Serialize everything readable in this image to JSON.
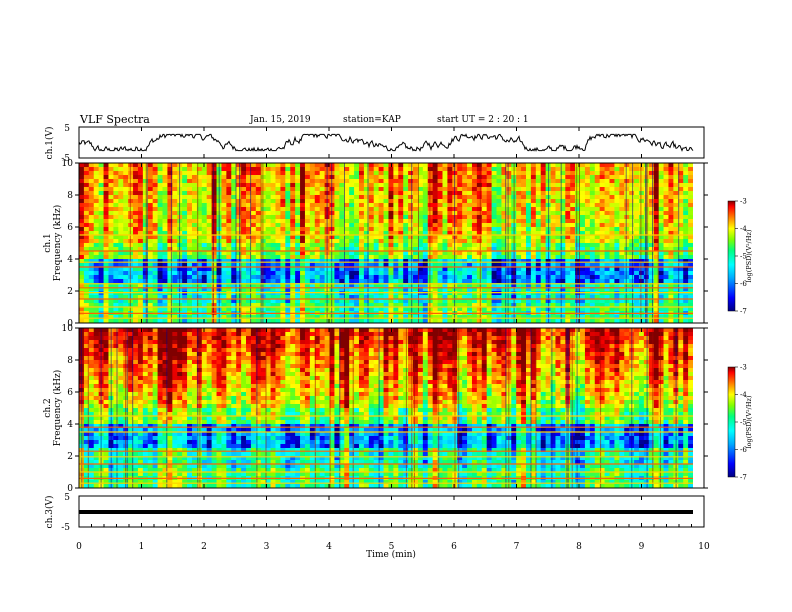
{
  "header": {
    "title": "VLF Spectra",
    "date": "Jan. 15, 2019",
    "station": "station=KAP",
    "start": "start UT = 2 : 20 : 1"
  },
  "chart_data": [
    {
      "type": "line",
      "panel": "ch1-waveform",
      "ylabel": "ch.1(V)",
      "ylim": [
        -5,
        5
      ],
      "yticks": [
        "5",
        "-5"
      ],
      "xlim": [
        0,
        10
      ],
      "note": "noisy waveform fluctuating roughly between -2.5 and 2.5 V"
    },
    {
      "type": "heatmap",
      "panel": "ch1-spectrogram",
      "ylabel": "ch.1 Frequency (kHz)",
      "ylim": [
        0,
        10
      ],
      "yticks": [
        "0",
        "2",
        "4",
        "6",
        "8",
        "10"
      ],
      "xlim": [
        0,
        10
      ],
      "colorbar": {
        "label": "log(PSD)(V²/Hz)",
        "range": [
          -7,
          -3
        ],
        "ticks": [
          "-3",
          "-4",
          "-5",
          "-6",
          "-7"
        ]
      },
      "bands_khz": [
        0.3,
        0.6,
        1.0,
        1.5,
        1.9,
        2.2,
        2.45,
        3.5,
        3.8,
        4.5,
        5.5
      ]
    },
    {
      "type": "heatmap",
      "panel": "ch2-spectrogram",
      "ylabel": "ch.2 Frequency (kHz)",
      "ylim": [
        0,
        10
      ],
      "yticks": [
        "0",
        "2",
        "4",
        "6",
        "8",
        "10"
      ],
      "xlim": [
        0,
        10
      ],
      "colorbar": {
        "label": "log(PSD)(V²/Hz)",
        "range": [
          -7,
          -3
        ],
        "ticks": [
          "-3",
          "-4",
          "-5",
          "-6",
          "-7"
        ]
      },
      "bands_khz": [
        0.3,
        0.6,
        1.0,
        1.5,
        1.95,
        2.3,
        3.5,
        3.8,
        4.5
      ]
    },
    {
      "type": "line",
      "panel": "ch3-waveform",
      "ylabel": "ch.3(V)",
      "ylim": [
        -5,
        5
      ],
      "yticks": [
        "5",
        "-5"
      ],
      "xlim": [
        0,
        10
      ],
      "note": "flat thick trace near -1 V"
    }
  ],
  "xaxis": {
    "label": "Time (min)",
    "ticks": [
      "0",
      "1",
      "2",
      "3",
      "4",
      "5",
      "6",
      "7",
      "8",
      "9",
      "10"
    ]
  },
  "colors": {
    "colormap": [
      "#000080",
      "#0000ff",
      "#00aaff",
      "#00ffff",
      "#00ff80",
      "#80ff00",
      "#ffff00",
      "#ff8000",
      "#ff0000",
      "#800000"
    ]
  }
}
